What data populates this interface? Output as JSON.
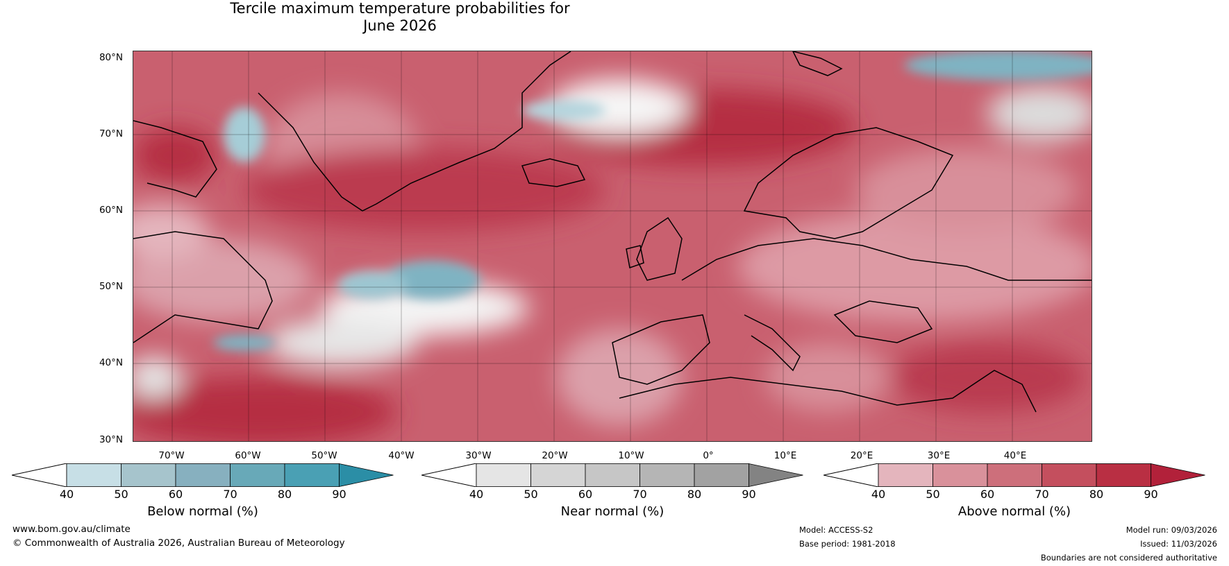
{
  "title": {
    "line1": "Tercile maximum temperature probabilities for",
    "line2": "June 2026"
  },
  "map": {
    "lat_labels": [
      "80°N",
      "70°N",
      "60°N",
      "50°N",
      "40°N",
      "30°N"
    ],
    "lon_labels": [
      "70°W",
      "60°W",
      "50°W",
      "40°W",
      "30°W",
      "20°W",
      "10°W",
      "0°",
      "10°E",
      "20°E",
      "30°E",
      "40°E"
    ]
  },
  "legends": {
    "below": {
      "title": "Below normal (%)",
      "ticks": [
        "40",
        "50",
        "60",
        "70",
        "80",
        "90"
      ],
      "colors": [
        "#c7dfe6",
        "#a6c4cc",
        "#87b0bf",
        "#68a9b8",
        "#4aa0b4",
        "#2b8ea6"
      ]
    },
    "near": {
      "title": "Near normal (%)",
      "ticks": [
        "40",
        "50",
        "60",
        "70",
        "80",
        "90"
      ],
      "colors": [
        "#e5e5e5",
        "#d5d5d5",
        "#c6c6c6",
        "#b5b5b5",
        "#a2a2a2",
        "#838383"
      ]
    },
    "above": {
      "title": "Above normal (%)",
      "ticks": [
        "40",
        "50",
        "60",
        "70",
        "80",
        "90"
      ],
      "colors": [
        "#e4b5bd",
        "#d9919b",
        "#cd6f7b",
        "#c44f5e",
        "#b92f43",
        "#b2213a"
      ]
    }
  },
  "footer": {
    "website": "www.bom.gov.au/climate",
    "copyright": "© Commonwealth of Australia 2026, Australian Bureau of Meteorology",
    "model": "Model: ACCESS-S2",
    "base_period": "Base period: 1981-2018",
    "model_run": "Model run: 09/03/2026",
    "issued": "Issued: 11/03/2026",
    "disclaimer": "Boundaries are not considered authoritative"
  }
}
